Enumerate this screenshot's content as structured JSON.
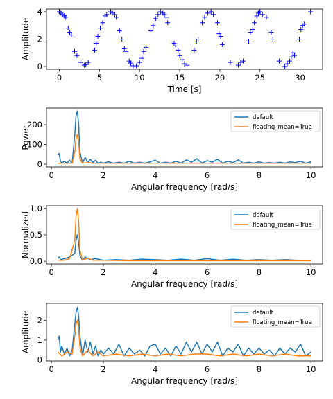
{
  "chart_data": [
    {
      "type": "scatter",
      "xlabel": "Time [s]",
      "ylabel": "Amplitude",
      "xlim": [
        -1.6,
        32.8
      ],
      "ylim": [
        -0.2,
        4.2
      ],
      "xticks": [
        0,
        5,
        10,
        15,
        20,
        25,
        30
      ],
      "yticks": [
        0,
        2,
        4
      ],
      "marker": "+",
      "color": "#0000ff",
      "series": [
        {
          "values": [
            [
              0.0,
              4.0
            ],
            [
              0.2,
              3.9
            ],
            [
              0.4,
              3.8
            ],
            [
              0.6,
              3.7
            ],
            [
              0.8,
              3.6
            ],
            [
              1.1,
              2.8
            ],
            [
              1.3,
              2.5
            ],
            [
              1.5,
              2.3
            ],
            [
              1.9,
              1.1
            ],
            [
              2.2,
              0.8
            ],
            [
              2.6,
              0.3
            ],
            [
              3.1,
              0.1
            ],
            [
              3.3,
              0.15
            ],
            [
              3.6,
              0.3
            ],
            [
              4.4,
              1.2
            ],
            [
              4.6,
              1.7
            ],
            [
              4.8,
              2.2
            ],
            [
              5.1,
              2.8
            ],
            [
              5.4,
              3.2
            ],
            [
              5.7,
              3.7
            ],
            [
              5.9,
              3.8
            ],
            [
              6.4,
              4.0
            ],
            [
              6.6,
              3.9
            ],
            [
              6.9,
              3.8
            ],
            [
              7.1,
              3.6
            ],
            [
              7.5,
              2.6
            ],
            [
              7.8,
              2.0
            ],
            [
              8.1,
              1.3
            ],
            [
              8.3,
              1.1
            ],
            [
              8.7,
              0.4
            ],
            [
              8.9,
              0.25
            ],
            [
              9.2,
              0.05
            ],
            [
              9.6,
              0.05
            ],
            [
              10.0,
              0.3
            ],
            [
              10.3,
              0.6
            ],
            [
              10.5,
              1.1
            ],
            [
              10.8,
              1.4
            ],
            [
              11.4,
              2.6
            ],
            [
              11.7,
              3.0
            ],
            [
              12.0,
              3.5
            ],
            [
              12.3,
              3.8
            ],
            [
              12.6,
              4.0
            ],
            [
              12.9,
              3.9
            ],
            [
              13.1,
              3.8
            ],
            [
              13.3,
              3.6
            ],
            [
              13.5,
              3.2
            ],
            [
              14.3,
              1.7
            ],
            [
              14.5,
              1.5
            ],
            [
              14.8,
              1.2
            ],
            [
              15.0,
              0.8
            ],
            [
              15.3,
              0.5
            ],
            [
              15.6,
              0.2
            ],
            [
              15.9,
              0.1
            ],
            [
              16.8,
              1.2
            ],
            [
              17.1,
              1.8
            ],
            [
              17.3,
              2.0
            ],
            [
              17.8,
              3.2
            ],
            [
              18.1,
              3.6
            ],
            [
              18.5,
              3.9
            ],
            [
              18.9,
              4.0
            ],
            [
              19.2,
              3.8
            ],
            [
              19.7,
              3.2
            ],
            [
              19.9,
              2.4
            ],
            [
              20.1,
              2.2
            ],
            [
              20.3,
              1.6
            ],
            [
              21.3,
              0.3
            ],
            [
              22.3,
              0.1
            ],
            [
              22.6,
              0.3
            ],
            [
              22.9,
              0.4
            ],
            [
              23.6,
              1.8
            ],
            [
              23.8,
              2.5
            ],
            [
              24.1,
              2.7
            ],
            [
              24.3,
              3.2
            ],
            [
              24.6,
              3.7
            ],
            [
              24.8,
              3.9
            ],
            [
              25.0,
              4.0
            ],
            [
              25.3,
              3.8
            ],
            [
              25.8,
              3.6
            ],
            [
              26.4,
              2.5
            ],
            [
              26.6,
              2.0
            ],
            [
              27.4,
              0.4
            ],
            [
              28.1,
              0.0
            ],
            [
              28.4,
              0.2
            ],
            [
              28.7,
              0.4
            ],
            [
              28.9,
              0.7
            ],
            [
              29.1,
              1.0
            ],
            [
              29.3,
              0.8
            ],
            [
              29.9,
              2.0
            ],
            [
              30.1,
              2.7
            ],
            [
              30.3,
              3.0
            ],
            [
              30.5,
              3.1
            ],
            [
              31.3,
              4.0
            ]
          ]
        }
      ]
    },
    {
      "type": "line",
      "xlabel": "Angular frequency [rad/s]",
      "ylabel": "Power",
      "xlim": [
        -0.19,
        10.45
      ],
      "ylim": [
        -14,
        285
      ],
      "xticks": [
        0,
        2,
        4,
        6,
        8,
        10
      ],
      "yticks": [
        0,
        100,
        200
      ],
      "legend": "top-right",
      "series": [
        {
          "name": "default",
          "color": "#1f77b4",
          "x": [
            0.25,
            0.3,
            0.35,
            0.4,
            0.5,
            0.6,
            0.7,
            0.8,
            0.9,
            0.95,
            1.0,
            1.05,
            1.1,
            1.2,
            1.3,
            1.4,
            1.5,
            1.6,
            1.7,
            1.8,
            1.9,
            2.0,
            2.2,
            2.4,
            2.6,
            2.8,
            3.0,
            3.2,
            3.4,
            3.6,
            3.8,
            4.0,
            4.2,
            4.4,
            4.6,
            4.8,
            5.0,
            5.2,
            5.4,
            5.6,
            5.8,
            6.0,
            6.2,
            6.4,
            6.6,
            6.8,
            7.0,
            7.2,
            7.4,
            7.6,
            7.8,
            8.0,
            8.2,
            8.4,
            8.6,
            8.8,
            9.0,
            9.2,
            9.4,
            9.6,
            9.8,
            10.0
          ],
          "values": [
            45,
            55,
            15,
            5,
            15,
            5,
            20,
            5,
            150,
            245,
            270,
            200,
            60,
            5,
            35,
            10,
            25,
            8,
            20,
            5,
            10,
            5,
            12,
            5,
            10,
            5,
            15,
            5,
            10,
            5,
            12,
            20,
            5,
            10,
            5,
            15,
            5,
            22,
            10,
            28,
            5,
            18,
            10,
            25,
            5,
            15,
            8,
            22,
            5,
            10,
            5,
            12,
            5,
            8,
            5,
            10,
            5,
            12,
            8,
            15,
            5,
            12
          ]
        },
        {
          "name": "floating_mean=True",
          "color": "#ff7f0e",
          "x": [
            0.25,
            0.4,
            0.6,
            0.8,
            0.9,
            0.95,
            1.0,
            1.05,
            1.1,
            1.2,
            1.4,
            1.6,
            2.0,
            3.0,
            4.0,
            5.0,
            6.0,
            7.0,
            8.0,
            9.0,
            10.0
          ],
          "values": [
            5,
            5,
            5,
            5,
            60,
            130,
            150,
            110,
            25,
            5,
            8,
            5,
            5,
            5,
            5,
            5,
            5,
            5,
            5,
            5,
            5
          ]
        }
      ]
    },
    {
      "type": "line",
      "xlabel": "Angular frequency [rad/s]",
      "ylabel": "Normalized",
      "xlim": [
        -0.19,
        10.45
      ],
      "ylim": [
        -0.05,
        1.05
      ],
      "xticks": [
        0,
        2,
        4,
        6,
        8,
        10
      ],
      "yticks": [
        0.0,
        0.5,
        1.0
      ],
      "legend": "top-right",
      "series": [
        {
          "name": "default",
          "color": "#1f77b4",
          "x": [
            0.25,
            0.3,
            0.35,
            0.5,
            0.7,
            0.9,
            0.95,
            1.0,
            1.05,
            1.1,
            1.2,
            1.3,
            1.5,
            1.7,
            2.0,
            2.5,
            3.0,
            3.5,
            4.0,
            4.5,
            5.0,
            5.5,
            6.0,
            6.5,
            7.0,
            7.5,
            8.0,
            8.5,
            9.0,
            9.5,
            10.0
          ],
          "values": [
            0.05,
            0.08,
            0.03,
            0.05,
            0.08,
            0.15,
            0.4,
            0.5,
            0.35,
            0.1,
            0.02,
            0.08,
            0.03,
            0.05,
            0.02,
            0.03,
            0.02,
            0.04,
            0.03,
            0.02,
            0.04,
            0.02,
            0.05,
            0.02,
            0.04,
            0.02,
            0.03,
            0.02,
            0.03,
            0.02,
            0.02
          ]
        },
        {
          "name": "floating_mean=True",
          "color": "#ff7f0e",
          "x": [
            0.25,
            0.5,
            0.7,
            0.9,
            0.95,
            1.0,
            1.05,
            1.1,
            1.2,
            1.4,
            1.6,
            2.0,
            3.0,
            4.0,
            5.0,
            6.0,
            7.0,
            8.0,
            9.0,
            10.0
          ],
          "values": [
            0.02,
            0.02,
            0.05,
            0.4,
            0.85,
            1.0,
            0.75,
            0.2,
            0.02,
            0.06,
            0.02,
            0.02,
            0.01,
            0.01,
            0.01,
            0.01,
            0.01,
            0.01,
            0.01,
            0.01
          ]
        }
      ]
    },
    {
      "type": "line",
      "xlabel": "Angular frequency [rad/s]",
      "ylabel": "Amplitude",
      "xlim": [
        -0.19,
        10.45
      ],
      "ylim": [
        -0.05,
        2.85
      ],
      "xticks": [
        0,
        2,
        4,
        6,
        8,
        10
      ],
      "yticks": [
        0,
        1,
        2
      ],
      "legend": "top-right",
      "series": [
        {
          "name": "default",
          "color": "#1f77b4",
          "x": [
            0.25,
            0.3,
            0.35,
            0.4,
            0.5,
            0.6,
            0.7,
            0.8,
            0.9,
            0.95,
            1.0,
            1.05,
            1.1,
            1.2,
            1.3,
            1.4,
            1.5,
            1.6,
            1.7,
            1.8,
            1.9,
            2.0,
            2.2,
            2.4,
            2.6,
            2.8,
            3.0,
            3.2,
            3.4,
            3.6,
            3.8,
            4.0,
            4.2,
            4.4,
            4.6,
            4.8,
            5.0,
            5.2,
            5.4,
            5.6,
            5.8,
            6.0,
            6.2,
            6.4,
            6.6,
            6.8,
            7.0,
            7.2,
            7.4,
            7.6,
            7.8,
            8.0,
            8.2,
            8.4,
            8.6,
            8.8,
            9.0,
            9.2,
            9.4,
            9.6,
            9.8,
            10.0
          ],
          "values": [
            1.0,
            1.2,
            0.4,
            0.7,
            0.3,
            0.6,
            0.2,
            0.5,
            1.8,
            2.4,
            2.65,
            2.2,
            1.2,
            0.2,
            1.0,
            0.4,
            0.9,
            0.3,
            0.7,
            0.2,
            0.5,
            0.3,
            0.6,
            0.3,
            0.8,
            0.2,
            0.6,
            0.3,
            0.5,
            0.2,
            0.7,
            0.8,
            0.3,
            0.6,
            0.2,
            0.7,
            0.3,
            0.9,
            0.4,
            0.9,
            0.3,
            0.8,
            0.4,
            0.9,
            0.2,
            0.6,
            0.4,
            0.8,
            0.2,
            0.6,
            0.3,
            0.6,
            0.3,
            0.5,
            0.2,
            0.6,
            0.3,
            0.6,
            0.4,
            0.8,
            0.2,
            0.4
          ]
        },
        {
          "name": "floating_mean=True",
          "color": "#ff7f0e",
          "x": [
            0.25,
            0.4,
            0.6,
            0.8,
            0.9,
            0.95,
            1.0,
            1.05,
            1.1,
            1.2,
            1.4,
            1.6,
            1.8,
            2.0,
            2.5,
            3.0,
            3.5,
            4.0,
            4.5,
            5.0,
            5.5,
            6.0,
            6.5,
            7.0,
            7.5,
            8.0,
            8.5,
            9.0,
            9.5,
            10.0
          ],
          "values": [
            0.4,
            0.2,
            0.4,
            0.3,
            1.2,
            1.8,
            2.0,
            1.6,
            0.6,
            0.2,
            0.5,
            0.2,
            0.4,
            0.2,
            0.3,
            0.2,
            0.3,
            0.2,
            0.3,
            0.2,
            0.3,
            0.3,
            0.2,
            0.3,
            0.2,
            0.3,
            0.2,
            0.3,
            0.2,
            0.2
          ]
        }
      ]
    }
  ]
}
